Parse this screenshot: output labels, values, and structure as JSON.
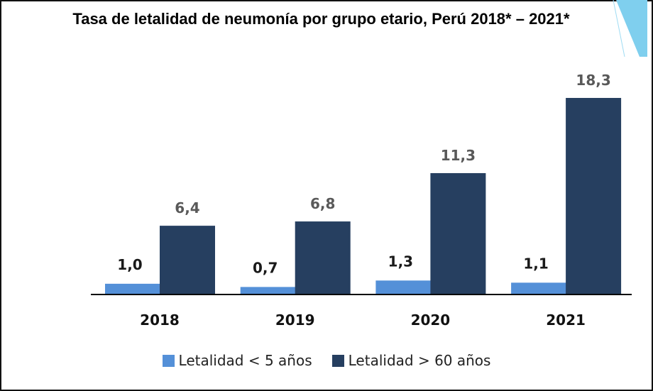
{
  "chart_data": {
    "type": "bar",
    "title": "Tasa de letalidad de neumonía por grupo etario, Perú 2018* – 2021*",
    "categories": [
      "2018",
      "2019",
      "2020",
      "2021"
    ],
    "series": [
      {
        "name": "Letalidad < 5 años",
        "values": [
          1.0,
          0.7,
          1.3,
          1.1
        ],
        "labels": [
          "1,0",
          "0,7",
          "1,3",
          "1,1"
        ],
        "color": "#5490d8"
      },
      {
        "name": "Letalidad > 60 años",
        "values": [
          6.4,
          6.8,
          11.3,
          18.3
        ],
        "labels": [
          "6,4",
          "6,8",
          "11,3",
          "18,3"
        ],
        "color": "#263f60"
      }
    ],
    "xlabel": "",
    "ylabel": "",
    "ylim": [
      0,
      18.3
    ],
    "grid": false,
    "legend": "bottom"
  }
}
